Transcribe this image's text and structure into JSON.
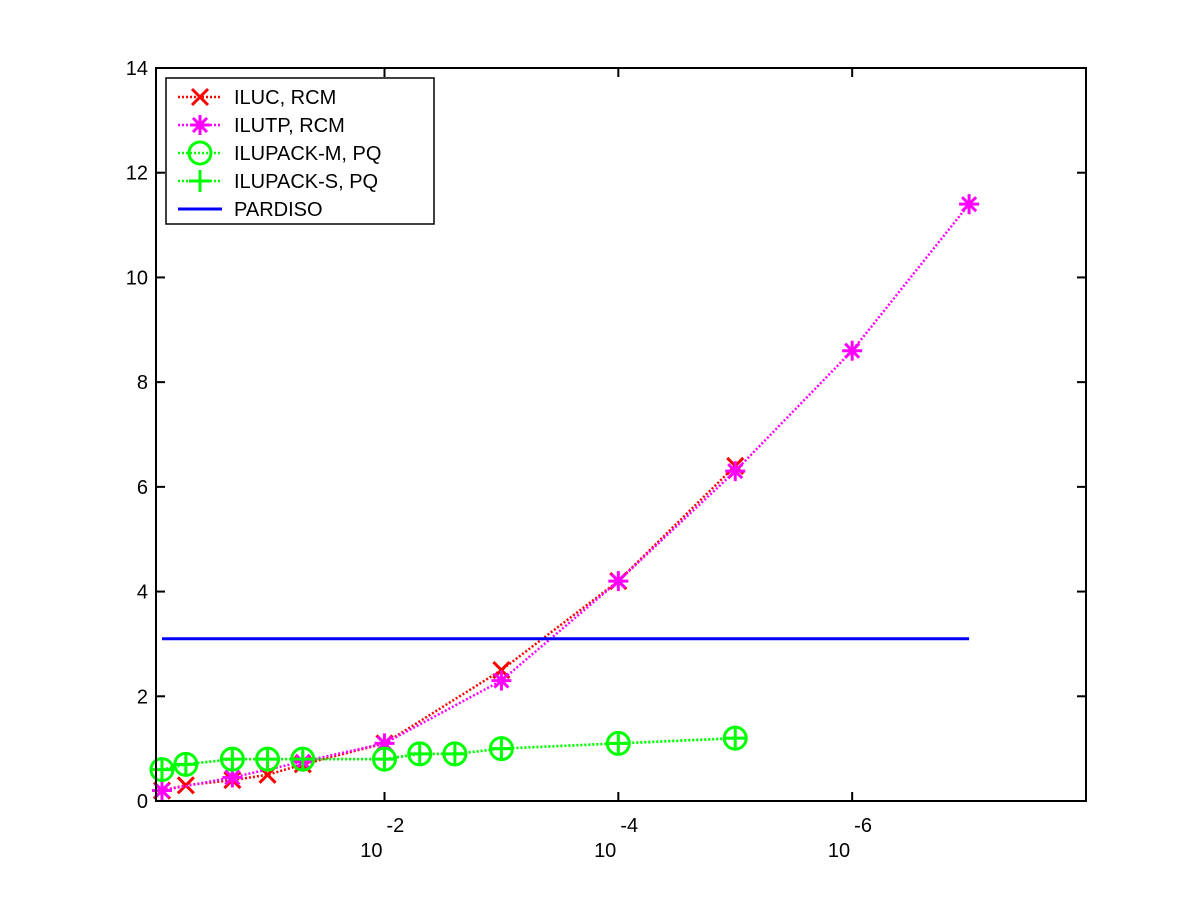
{
  "chart_data": {
    "type": "line",
    "x_scale": "log",
    "x_reversed": true,
    "xlim": [
      0.9,
      1e-08
    ],
    "ylim": [
      0,
      14
    ],
    "y_ticks": [
      0,
      2,
      4,
      6,
      8,
      10,
      12,
      14
    ],
    "x_ticks": [
      {
        "value": 0.01,
        "base": "10",
        "exponent": "-2"
      },
      {
        "value": 0.0001,
        "base": "10",
        "exponent": "-4"
      },
      {
        "value": 1e-06,
        "base": "10",
        "exponent": "-6"
      }
    ],
    "grid": false,
    "legend_position": "top-left",
    "series": [
      {
        "name": "ILUC, RCM",
        "color": "#ff0000",
        "marker": "x",
        "line_style": "dotted",
        "x": [
          0.8,
          0.5,
          0.2,
          0.1,
          0.05,
          0.01,
          0.001,
          0.0001,
          1e-05
        ],
        "y": [
          0.2,
          0.3,
          0.4,
          0.5,
          0.7,
          1.1,
          2.5,
          4.2,
          6.4
        ]
      },
      {
        "name": "ILUTP, RCM",
        "color": "#ff00ff",
        "marker": "asterisk",
        "line_style": "dotted",
        "x": [
          0.8,
          0.2,
          0.05,
          0.01,
          0.001,
          0.0001,
          1e-05,
          1e-06,
          1e-07
        ],
        "y": [
          0.2,
          0.45,
          0.75,
          1.1,
          2.3,
          4.2,
          6.3,
          8.6,
          11.4
        ]
      },
      {
        "name": "ILUPACK-M, PQ",
        "color": "#00ff00",
        "marker": "circle",
        "line_style": "dotted",
        "x": [
          0.8,
          0.5,
          0.2,
          0.1,
          0.05,
          0.01,
          0.005,
          0.0025,
          0.001,
          0.0001,
          1e-05
        ],
        "y": [
          0.6,
          0.7,
          0.8,
          0.8,
          0.8,
          0.8,
          0.9,
          0.9,
          1.0,
          1.1,
          1.2
        ]
      },
      {
        "name": "ILUPACK-S, PQ",
        "color": "#00ff00",
        "marker": "plus",
        "line_style": "dotted",
        "x": [
          0.8,
          0.5,
          0.2,
          0.1,
          0.05,
          0.01,
          0.005,
          0.0025,
          0.001,
          0.0001,
          1e-05
        ],
        "y": [
          0.6,
          0.7,
          0.8,
          0.8,
          0.8,
          0.8,
          0.9,
          0.9,
          1.0,
          1.1,
          1.2
        ]
      },
      {
        "name": "PARDISO",
        "color": "#0000ff",
        "marker": "none",
        "line_style": "solid",
        "x": [
          0.8,
          1e-07
        ],
        "y": [
          3.1,
          3.1
        ]
      }
    ]
  }
}
